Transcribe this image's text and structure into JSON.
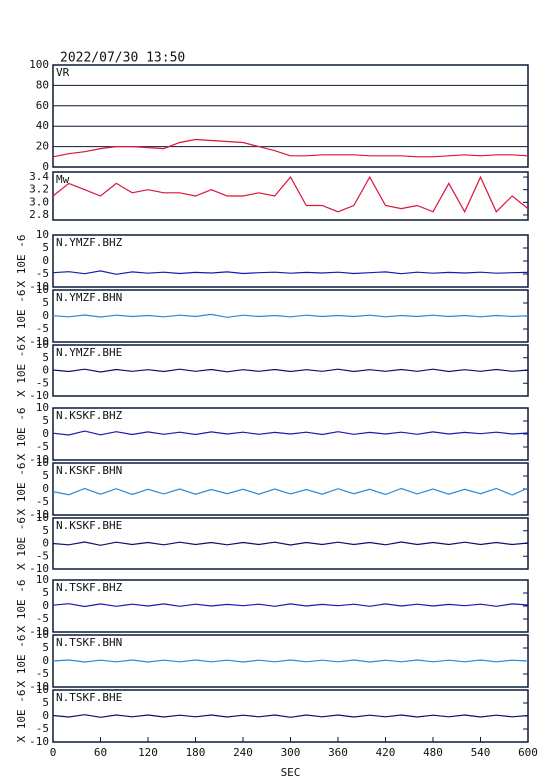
{
  "title": "2022/07/30 13:50",
  "chart_data": [
    {
      "type": "line",
      "title": "VR",
      "x": [
        0,
        20,
        40,
        60,
        80,
        100,
        120,
        140,
        160,
        180,
        200,
        220,
        240,
        260,
        280,
        300,
        320,
        340,
        360,
        380,
        400,
        420,
        440,
        460,
        480,
        500,
        520,
        540,
        560,
        580,
        600
      ],
      "xlim": [
        0,
        600
      ],
      "ylim": [
        0,
        100
      ],
      "yticks": [
        0,
        20,
        40,
        60,
        80,
        100
      ],
      "grid": true,
      "series": [
        {
          "color": "#dc143c",
          "values": [
            10,
            13,
            15,
            18,
            20,
            20,
            19,
            18,
            24,
            27,
            26,
            25,
            24,
            20,
            16,
            11,
            11,
            12,
            12,
            12,
            11,
            11,
            11,
            10,
            10,
            11,
            12,
            11,
            12,
            12,
            11
          ]
        }
      ]
    },
    {
      "type": "line",
      "title": "Mw",
      "x": [
        0,
        20,
        40,
        60,
        80,
        100,
        120,
        140,
        160,
        180,
        200,
        220,
        240,
        260,
        280,
        300,
        320,
        340,
        360,
        380,
        400,
        420,
        440,
        460,
        480,
        500,
        520,
        540,
        560,
        580,
        600
      ],
      "xlim": [
        0,
        600
      ],
      "ylim": [
        2.72,
        3.48
      ],
      "yticks": [
        2.8,
        {
          "value": 3.0,
          "label": "3.0"
        },
        3.2,
        3.4
      ],
      "series": [
        {
          "color": "#dc143c",
          "values": [
            3.1,
            3.3,
            3.2,
            3.1,
            3.3,
            3.15,
            3.2,
            3.15,
            3.15,
            3.1,
            3.2,
            3.1,
            3.1,
            3.15,
            3.1,
            3.4,
            2.95,
            2.95,
            2.85,
            2.95,
            3.4,
            2.95,
            2.9,
            2.95,
            2.85,
            3.3,
            2.85,
            3.4,
            2.85,
            3.1,
            2.9
          ]
        }
      ]
    },
    {
      "type": "line",
      "title": "N.YMZF.BHZ",
      "ylabel": "X 10E -6",
      "x": [
        0,
        20,
        40,
        60,
        80,
        100,
        120,
        140,
        160,
        180,
        200,
        220,
        240,
        260,
        280,
        300,
        320,
        340,
        360,
        380,
        400,
        420,
        440,
        460,
        480,
        500,
        520,
        540,
        560,
        580,
        600
      ],
      "xlim": [
        0,
        600
      ],
      "ylim": [
        -10,
        10
      ],
      "yticks": [
        -10,
        -5,
        0,
        5,
        10
      ],
      "series": [
        {
          "color": "#1a1ab0",
          "values": [
            -4.5,
            -4.1,
            -4.9,
            -3.8,
            -5.1,
            -4.2,
            -4.7,
            -4.3,
            -4.8,
            -4.4,
            -4.6,
            -4.2,
            -4.8,
            -4.5,
            -4.3,
            -4.7,
            -4.4,
            -4.6,
            -4.3,
            -4.8,
            -4.5,
            -4.2,
            -4.9,
            -4.3,
            -4.7,
            -4.4,
            -4.6,
            -4.3,
            -4.7,
            -4.5,
            -4.4
          ]
        }
      ]
    },
    {
      "type": "line",
      "title": "N.YMZF.BHN",
      "ylabel": "X 10E -6",
      "x": [
        0,
        20,
        40,
        60,
        80,
        100,
        120,
        140,
        160,
        180,
        200,
        220,
        240,
        260,
        280,
        300,
        320,
        340,
        360,
        380,
        400,
        420,
        440,
        460,
        480,
        500,
        520,
        540,
        560,
        580,
        600
      ],
      "xlim": [
        0,
        600
      ],
      "ylim": [
        -10,
        10
      ],
      "yticks": [
        -10,
        -5,
        0,
        5,
        10
      ],
      "series": [
        {
          "color": "#2a8ad8",
          "values": [
            0.1,
            -0.3,
            0.4,
            -0.4,
            0.3,
            -0.2,
            0.2,
            -0.3,
            0.3,
            -0.2,
            0.6,
            -0.5,
            0.3,
            -0.2,
            0.2,
            -0.3,
            0.3,
            -0.2,
            0.2,
            -0.2,
            0.3,
            -0.3,
            0.2,
            -0.2,
            0.3,
            -0.2,
            0.2,
            -0.3,
            0.2,
            -0.2,
            0.1
          ]
        }
      ]
    },
    {
      "type": "line",
      "title": "N.YMZF.BHE",
      "ylabel": "X 10E -6",
      "x": [
        0,
        20,
        40,
        60,
        80,
        100,
        120,
        140,
        160,
        180,
        200,
        220,
        240,
        260,
        280,
        300,
        320,
        340,
        360,
        380,
        400,
        420,
        440,
        460,
        480,
        500,
        520,
        540,
        560,
        580,
        600
      ],
      "xlim": [
        0,
        600
      ],
      "ylim": [
        -10,
        10
      ],
      "yticks": [
        -10,
        -5,
        0,
        5,
        10
      ],
      "series": [
        {
          "color": "#10106a",
          "values": [
            0.2,
            -0.4,
            0.5,
            -0.6,
            0.4,
            -0.3,
            0.3,
            -0.4,
            0.5,
            -0.3,
            0.4,
            -0.5,
            0.3,
            -0.3,
            0.4,
            -0.4,
            0.3,
            -0.3,
            0.5,
            -0.4,
            0.3,
            -0.3,
            0.4,
            -0.3,
            0.5,
            -0.4,
            0.3,
            -0.3,
            0.4,
            -0.3,
            0.2
          ]
        }
      ]
    },
    {
      "type": "line",
      "title": "N.KSKF.BHZ",
      "ylabel": "X 10E -6",
      "x": [
        0,
        20,
        40,
        60,
        80,
        100,
        120,
        140,
        160,
        180,
        200,
        220,
        240,
        260,
        280,
        300,
        320,
        340,
        360,
        380,
        400,
        420,
        440,
        460,
        480,
        500,
        520,
        540,
        560,
        580,
        600
      ],
      "xlim": [
        0,
        600
      ],
      "ylim": [
        -10,
        10
      ],
      "yticks": [
        -10,
        -5,
        0,
        5,
        10
      ],
      "series": [
        {
          "color": "#1a1ab0",
          "values": [
            0.3,
            -0.4,
            1.1,
            -0.3,
            0.9,
            -0.2,
            0.8,
            -0.1,
            0.7,
            -0.2,
            0.8,
            0.0,
            0.7,
            -0.1,
            0.6,
            0.0,
            0.7,
            -0.2,
            0.9,
            -0.1,
            0.6,
            0.0,
            0.7,
            -0.1,
            0.8,
            0.0,
            0.6,
            0.1,
            0.7,
            0.0,
            0.4
          ]
        }
      ]
    },
    {
      "type": "line",
      "title": "N.KSKF.BHN",
      "ylabel": "X 10E -6",
      "x": [
        0,
        20,
        40,
        60,
        80,
        100,
        120,
        140,
        160,
        180,
        200,
        220,
        240,
        260,
        280,
        300,
        320,
        340,
        360,
        380,
        400,
        420,
        440,
        460,
        480,
        500,
        520,
        540,
        560,
        580,
        600
      ],
      "xlim": [
        0,
        600
      ],
      "ylim": [
        -10,
        10
      ],
      "yticks": [
        -10,
        -5,
        0,
        5,
        10
      ],
      "series": [
        {
          "color": "#2a8ad8",
          "values": [
            -1.0,
            -2.2,
            0.2,
            -2.0,
            0.1,
            -2.1,
            -0.1,
            -1.9,
            0.0,
            -2.0,
            -0.2,
            -1.8,
            -0.1,
            -2.0,
            0.0,
            -1.9,
            -0.2,
            -2.0,
            0.1,
            -1.8,
            -0.1,
            -2.1,
            0.2,
            -1.9,
            0.0,
            -2.0,
            -0.1,
            -1.8,
            0.2,
            -2.3,
            0.4
          ]
        }
      ]
    },
    {
      "type": "line",
      "title": "N.KSKF.BHE",
      "ylabel": "X 10E -6",
      "x": [
        0,
        20,
        40,
        60,
        80,
        100,
        120,
        140,
        160,
        180,
        200,
        220,
        240,
        260,
        280,
        300,
        320,
        340,
        360,
        380,
        400,
        420,
        440,
        460,
        480,
        500,
        520,
        540,
        560,
        580,
        600
      ],
      "xlim": [
        0,
        600
      ],
      "ylim": [
        -10,
        10
      ],
      "yticks": [
        -10,
        -5,
        0,
        5,
        10
      ],
      "series": [
        {
          "color": "#10106a",
          "values": [
            0.0,
            -0.5,
            0.6,
            -0.7,
            0.5,
            -0.4,
            0.4,
            -0.5,
            0.5,
            -0.4,
            0.4,
            -0.5,
            0.4,
            -0.4,
            0.5,
            -0.6,
            0.4,
            -0.4,
            0.5,
            -0.4,
            0.4,
            -0.5,
            0.6,
            -0.4,
            0.4,
            -0.4,
            0.5,
            -0.4,
            0.4,
            -0.4,
            0.2
          ]
        }
      ]
    },
    {
      "type": "line",
      "title": "N.TSKF.BHZ",
      "ylabel": "X 10E -6",
      "x": [
        0,
        20,
        40,
        60,
        80,
        100,
        120,
        140,
        160,
        180,
        200,
        220,
        240,
        260,
        280,
        300,
        320,
        340,
        360,
        380,
        400,
        420,
        440,
        460,
        480,
        500,
        520,
        540,
        560,
        580,
        600
      ],
      "xlim": [
        0,
        600
      ],
      "ylim": [
        -10,
        10
      ],
      "yticks": [
        -10,
        -5,
        0,
        5,
        10
      ],
      "series": [
        {
          "color": "#1a1ab0",
          "values": [
            0.3,
            0.9,
            -0.2,
            0.8,
            -0.1,
            0.7,
            0.0,
            0.8,
            -0.1,
            0.7,
            0.0,
            0.6,
            0.1,
            0.7,
            -0.1,
            0.8,
            0.0,
            0.6,
            0.1,
            0.7,
            -0.1,
            0.8,
            0.0,
            0.7,
            0.0,
            0.6,
            0.1,
            0.7,
            -0.1,
            0.8,
            0.4
          ]
        }
      ]
    },
    {
      "type": "line",
      "title": "N.TSKF.BHN",
      "ylabel": "X 10E -6",
      "x": [
        0,
        20,
        40,
        60,
        80,
        100,
        120,
        140,
        160,
        180,
        200,
        220,
        240,
        260,
        280,
        300,
        320,
        340,
        360,
        380,
        400,
        420,
        440,
        460,
        480,
        500,
        520,
        540,
        560,
        580,
        600
      ],
      "xlim": [
        0,
        600
      ],
      "ylim": [
        -10,
        10
      ],
      "yticks": [
        -10,
        -5,
        0,
        5,
        10
      ],
      "series": [
        {
          "color": "#2a8ad8",
          "values": [
            0.0,
            0.4,
            -0.4,
            0.3,
            -0.3,
            0.4,
            -0.4,
            0.3,
            -0.3,
            0.4,
            -0.3,
            0.3,
            -0.4,
            0.3,
            -0.3,
            0.4,
            -0.3,
            0.3,
            -0.3,
            0.4,
            -0.4,
            0.3,
            -0.3,
            0.4,
            -0.3,
            0.3,
            -0.3,
            0.4,
            -0.3,
            0.3,
            0.0
          ]
        }
      ]
    },
    {
      "type": "line",
      "title": "N.TSKF.BHE",
      "ylabel": "X 10E -6",
      "xlabel": "SEC",
      "x": [
        0,
        20,
        40,
        60,
        80,
        100,
        120,
        140,
        160,
        180,
        200,
        220,
        240,
        260,
        280,
        300,
        320,
        340,
        360,
        380,
        400,
        420,
        440,
        460,
        480,
        500,
        520,
        540,
        560,
        580,
        600
      ],
      "xlim": [
        0,
        600
      ],
      "ylim": [
        -10,
        10
      ],
      "yticks": [
        -10,
        -5,
        0,
        5,
        10
      ],
      "xticks": [
        0,
        60,
        120,
        180,
        240,
        300,
        360,
        420,
        480,
        540,
        600
      ],
      "series": [
        {
          "color": "#10106a",
          "values": [
            0.2,
            -0.4,
            0.5,
            -0.5,
            0.4,
            -0.3,
            0.4,
            -0.4,
            0.3,
            -0.3,
            0.4,
            -0.4,
            0.3,
            -0.3,
            0.4,
            -0.5,
            0.4,
            -0.3,
            0.4,
            -0.4,
            0.3,
            -0.3,
            0.4,
            -0.4,
            0.3,
            -0.3,
            0.4,
            -0.4,
            0.3,
            -0.3,
            0.2
          ]
        }
      ]
    }
  ]
}
